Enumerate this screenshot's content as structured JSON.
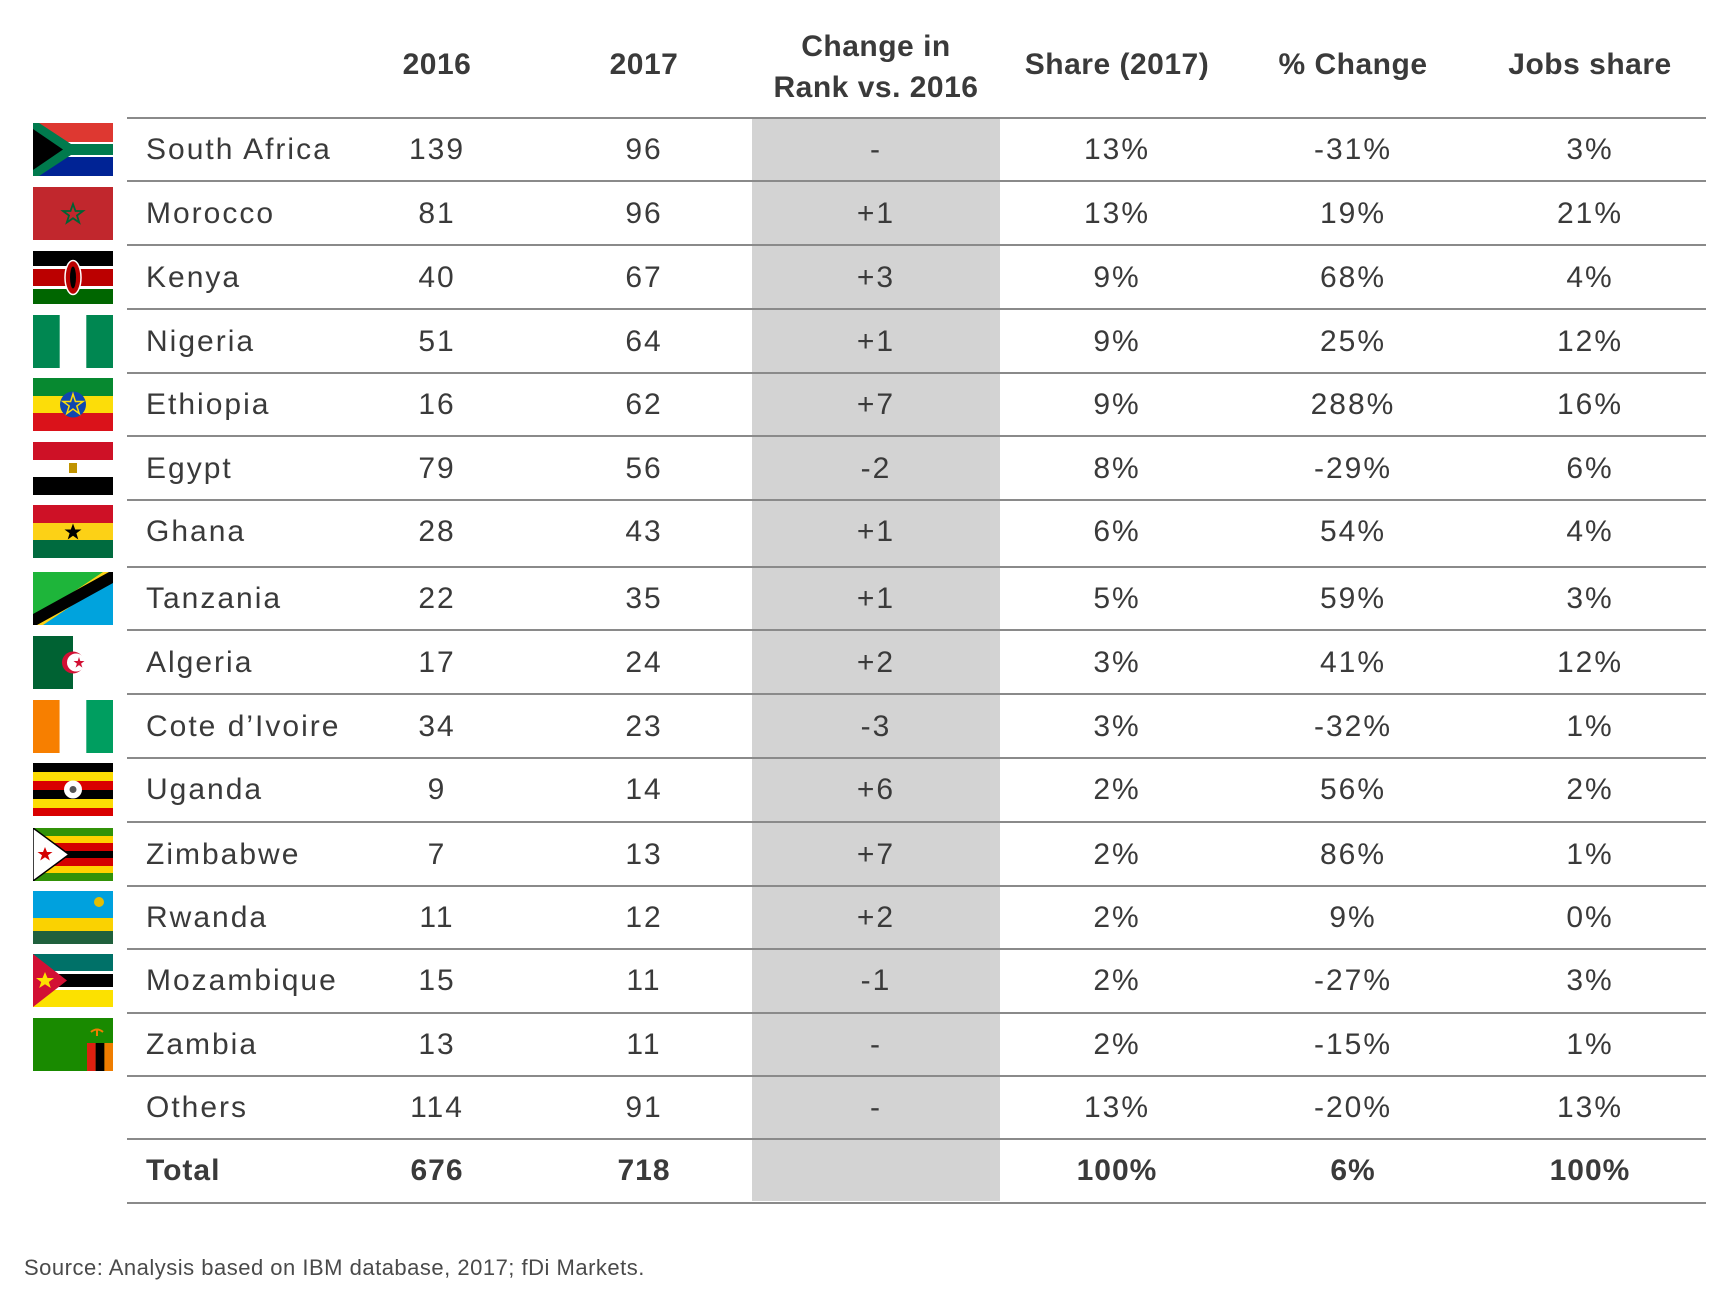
{
  "header": {
    "col_2016": "2016",
    "col_2017": "2017",
    "col_change_line1": "Change in",
    "col_change_line2": "Rank vs. 2016",
    "col_share": "Share (2017)",
    "col_pct": "% Change",
    "col_jobs": "Jobs share"
  },
  "rows": [
    {
      "country": "South Africa",
      "y2016": "139",
      "y2017": "96",
      "change": "-",
      "share": "13%",
      "pct": "-31%",
      "jobs": "3%",
      "flag_icon": "south-africa-flag-icon"
    },
    {
      "country": "Morocco",
      "y2016": "81",
      "y2017": "96",
      "change": "+1",
      "share": "13%",
      "pct": "19%",
      "jobs": "21%",
      "flag_icon": "morocco-flag-icon"
    },
    {
      "country": "Kenya",
      "y2016": "40",
      "y2017": "67",
      "change": "+3",
      "share": "9%",
      "pct": "68%",
      "jobs": "4%",
      "flag_icon": "kenya-flag-icon"
    },
    {
      "country": "Nigeria",
      "y2016": "51",
      "y2017": "64",
      "change": "+1",
      "share": "9%",
      "pct": "25%",
      "jobs": "12%",
      "flag_icon": "nigeria-flag-icon"
    },
    {
      "country": "Ethiopia",
      "y2016": "16",
      "y2017": "62",
      "change": "+7",
      "share": "9%",
      "pct": "288%",
      "jobs": "16%",
      "flag_icon": "ethiopia-flag-icon"
    },
    {
      "country": "Egypt",
      "y2016": "79",
      "y2017": "56",
      "change": "-2",
      "share": "8%",
      "pct": "-29%",
      "jobs": "6%",
      "flag_icon": "egypt-flag-icon"
    },
    {
      "country": "Ghana",
      "y2016": "28",
      "y2017": "43",
      "change": "+1",
      "share": "6%",
      "pct": "54%",
      "jobs": "4%",
      "flag_icon": "ghana-flag-icon"
    },
    {
      "country": "Tanzania",
      "y2016": "22",
      "y2017": "35",
      "change": "+1",
      "share": "5%",
      "pct": "59%",
      "jobs": "3%",
      "flag_icon": "tanzania-flag-icon"
    },
    {
      "country": "Algeria",
      "y2016": "17",
      "y2017": "24",
      "change": "+2",
      "share": "3%",
      "pct": "41%",
      "jobs": "12%",
      "flag_icon": "algeria-flag-icon"
    },
    {
      "country": "Cote d’Ivoire",
      "y2016": "34",
      "y2017": "23",
      "change": "-3",
      "share": "3%",
      "pct": "-32%",
      "jobs": "1%",
      "flag_icon": "cote-divoire-flag-icon"
    },
    {
      "country": "Uganda",
      "y2016": "9",
      "y2017": "14",
      "change": "+6",
      "share": "2%",
      "pct": "56%",
      "jobs": "2%",
      "flag_icon": "uganda-flag-icon"
    },
    {
      "country": "Zimbabwe",
      "y2016": "7",
      "y2017": "13",
      "change": "+7",
      "share": "2%",
      "pct": "86%",
      "jobs": "1%",
      "flag_icon": "zimbabwe-flag-icon"
    },
    {
      "country": "Rwanda",
      "y2016": "11",
      "y2017": "12",
      "change": "+2",
      "share": "2%",
      "pct": "9%",
      "jobs": "0%",
      "flag_icon": "rwanda-flag-icon"
    },
    {
      "country": "Mozambique",
      "y2016": "15",
      "y2017": "11",
      "change": "-1",
      "share": "2%",
      "pct": "-27%",
      "jobs": "3%",
      "flag_icon": "mozambique-flag-icon"
    },
    {
      "country": "Zambia",
      "y2016": "13",
      "y2017": "11",
      "change": "-",
      "share": "2%",
      "pct": "-15%",
      "jobs": "1%",
      "flag_icon": "zambia-flag-icon"
    }
  ],
  "others": {
    "country": "Others",
    "y2016": "114",
    "y2017": "91",
    "change": "-",
    "share": "13%",
    "pct": "-20%",
    "jobs": "13%"
  },
  "total": {
    "country": "Total",
    "y2016": "676",
    "y2017": "718",
    "change": "",
    "share": "100%",
    "pct": "6%",
    "jobs": "100%"
  },
  "source": "Source: Analysis based on IBM database, 2017; fDi Markets.",
  "colors": {
    "highlight_column": "#d3d3d3",
    "rule": "#8a8a8a",
    "text": "#3a3a3a"
  }
}
